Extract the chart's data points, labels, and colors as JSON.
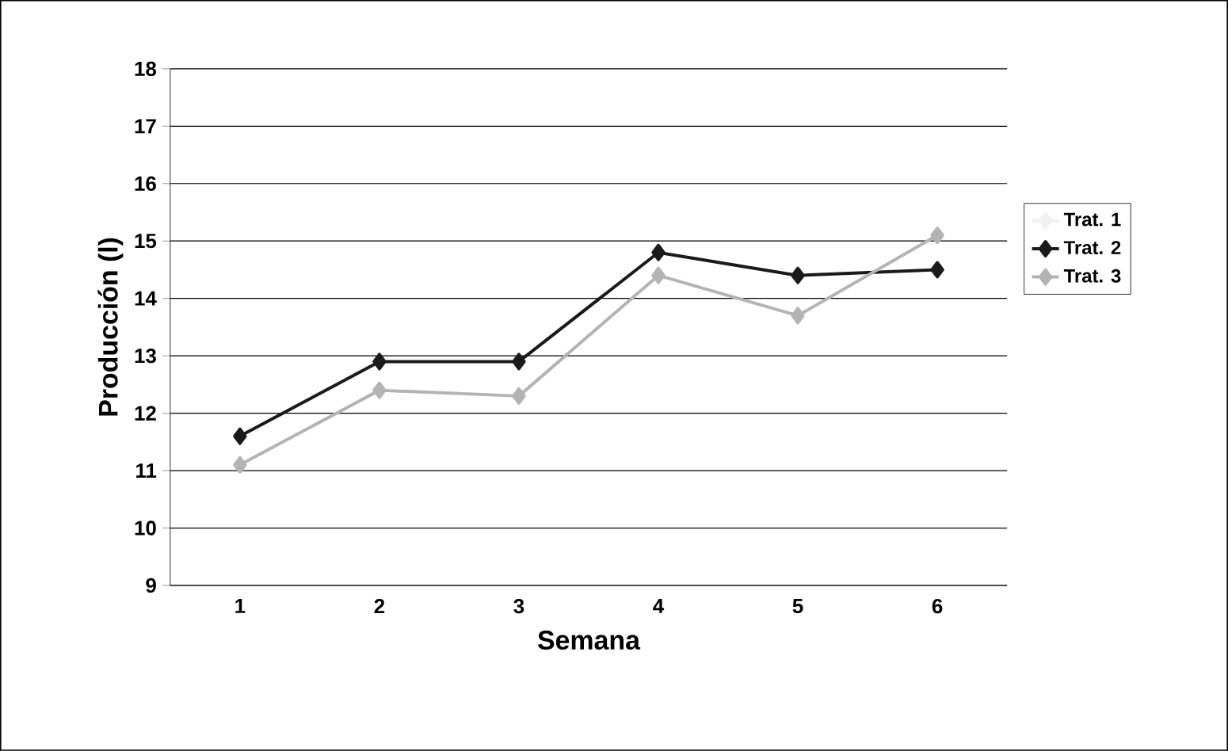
{
  "chart_data": {
    "type": "line",
    "xlabel": "Semana",
    "ylabel": "Producción (l)",
    "categories": [
      "1",
      "2",
      "3",
      "4",
      "5",
      "6"
    ],
    "series": [
      {
        "name": "Trat. 1",
        "color": "#f2f2f2",
        "values": [
          null,
          null,
          null,
          null,
          null,
          null
        ]
      },
      {
        "name": "Trat. 2",
        "color": "#1a1a1a",
        "values": [
          11.6,
          12.9,
          12.9,
          14.8,
          14.4,
          14.5
        ]
      },
      {
        "name": "Trat. 3",
        "color": "#b4b4b4",
        "values": [
          11.1,
          12.4,
          12.3,
          14.4,
          13.7,
          15.1
        ]
      }
    ],
    "ylim": [
      9,
      18
    ],
    "yticks": [
      9,
      10,
      11,
      12,
      13,
      14,
      15,
      16,
      17,
      18
    ],
    "grid": "y",
    "legend": "right",
    "marker": "diamond",
    "line_style": "solid"
  }
}
